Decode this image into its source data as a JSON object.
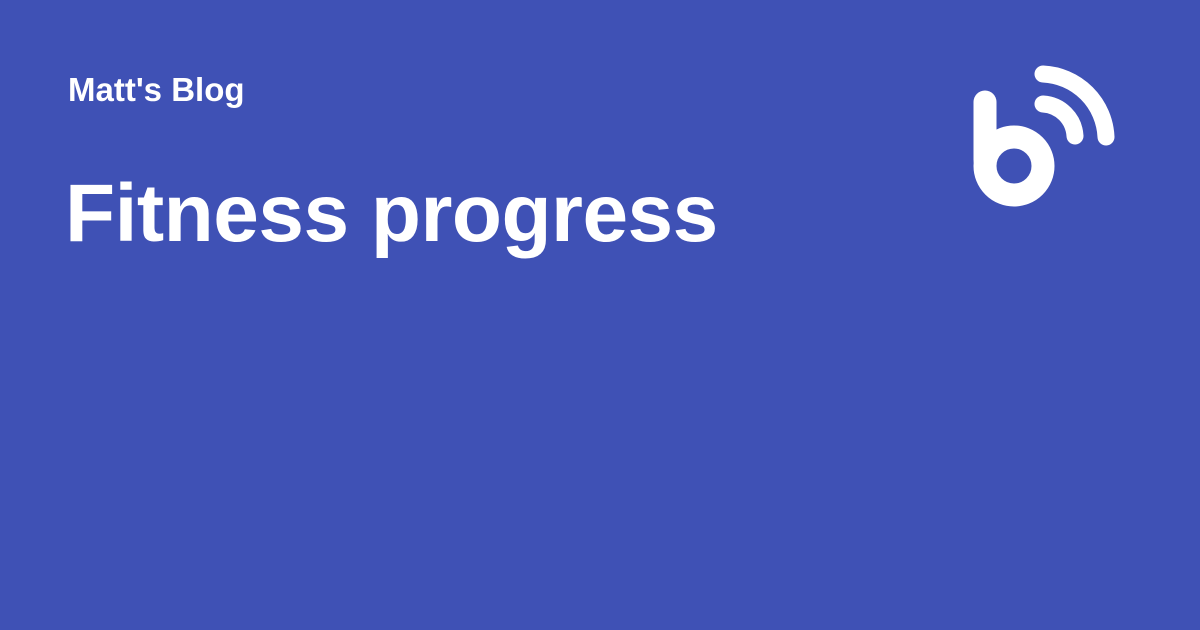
{
  "page": {
    "background_color": "#3F51B5",
    "text_color": "#FFFFFF"
  },
  "blog": {
    "name": "Matt's Blog",
    "logo_icon": "blog-b-feed-icon"
  },
  "post": {
    "title": "Fitness progress"
  }
}
